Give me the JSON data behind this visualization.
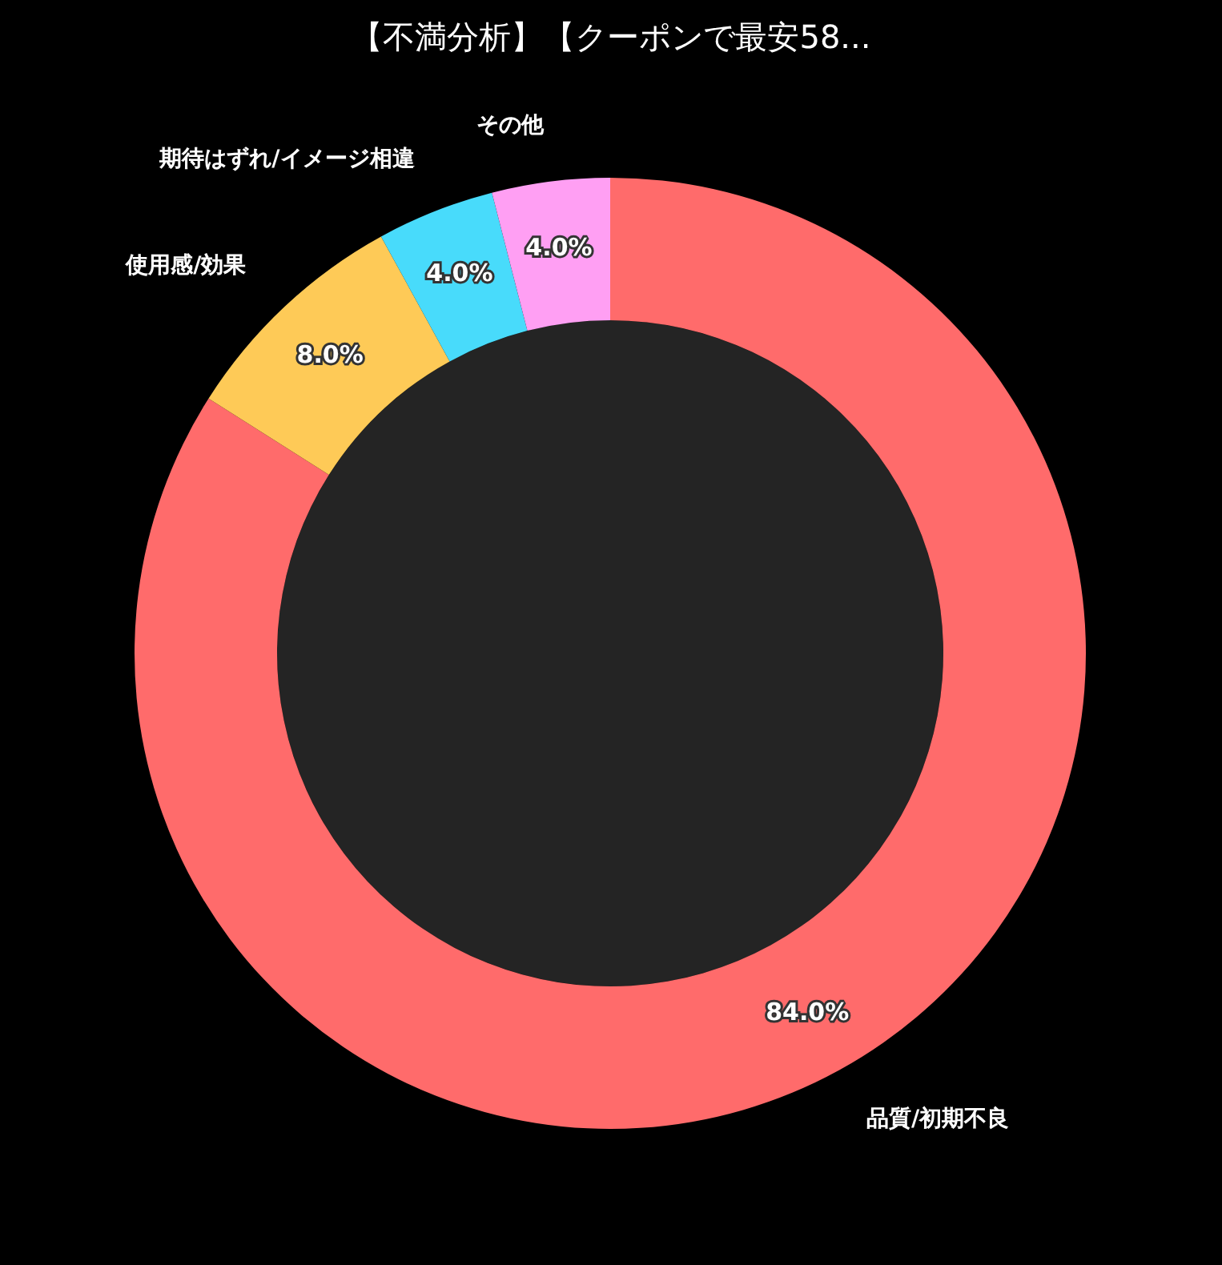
{
  "chart_data": {
    "type": "donut",
    "title": "【不満分析】【クーポンで最安58...",
    "categories": [
      "品質/初期不良",
      "使用感/効果",
      "期待はずれ/イメージ相違",
      "その他"
    ],
    "values": [
      84,
      8,
      4,
      4
    ],
    "colors": [
      "#ff6b6b",
      "#feca57",
      "#48dbfb",
      "#ff9ff3"
    ],
    "value_labels": [
      "84.0%",
      "8.0%",
      "4.0%",
      "4.0%"
    ],
    "legend": false
  }
}
